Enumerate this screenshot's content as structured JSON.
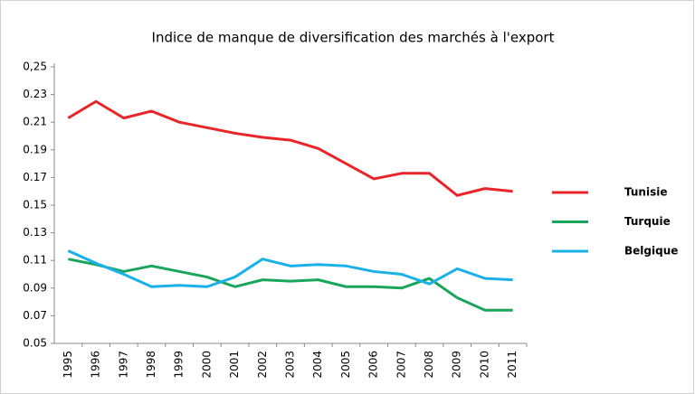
{
  "chart_data": {
    "type": "line",
    "title": "Indice de manque de diversification des marchés à l'export",
    "categories": [
      "1995",
      "1996",
      "1997",
      "1998",
      "1999",
      "2000",
      "2001",
      "2002",
      "2003",
      "2004",
      "2005",
      "2006",
      "2007",
      "2008",
      "2009",
      "2010",
      "2011"
    ],
    "series": [
      {
        "name": "Tunisie",
        "color": "#e8262a",
        "values": [
          0.213,
          0.225,
          0.213,
          0.218,
          0.21,
          0.206,
          0.202,
          0.199,
          0.197,
          0.191,
          0.18,
          0.169,
          0.173,
          0.173,
          0.157,
          0.162,
          0.16
        ]
      },
      {
        "name": "Turquie",
        "color": "#1aa65a",
        "values": [
          0.111,
          0.107,
          0.102,
          0.106,
          0.102,
          0.098,
          0.091,
          0.096,
          0.095,
          0.096,
          0.091,
          0.091,
          0.09,
          0.097,
          0.083,
          0.074,
          0.074
        ]
      },
      {
        "name": "Belgique",
        "color": "#1ab0e8",
        "values": [
          0.117,
          0.108,
          0.1,
          0.091,
          0.092,
          0.091,
          0.098,
          0.111,
          0.106,
          0.107,
          0.106,
          0.102,
          0.1,
          0.093,
          0.104,
          0.097,
          0.096
        ]
      }
    ],
    "ylim": [
      0.05,
      0.25
    ],
    "yticks": [
      0.05,
      0.07,
      0.09,
      0.11,
      0.13,
      0.15,
      0.17,
      0.19,
      0.21,
      0.23,
      {
        "value": 0.25,
        "label": "0,25"
      }
    ],
    "legend": "right",
    "grid": false
  }
}
